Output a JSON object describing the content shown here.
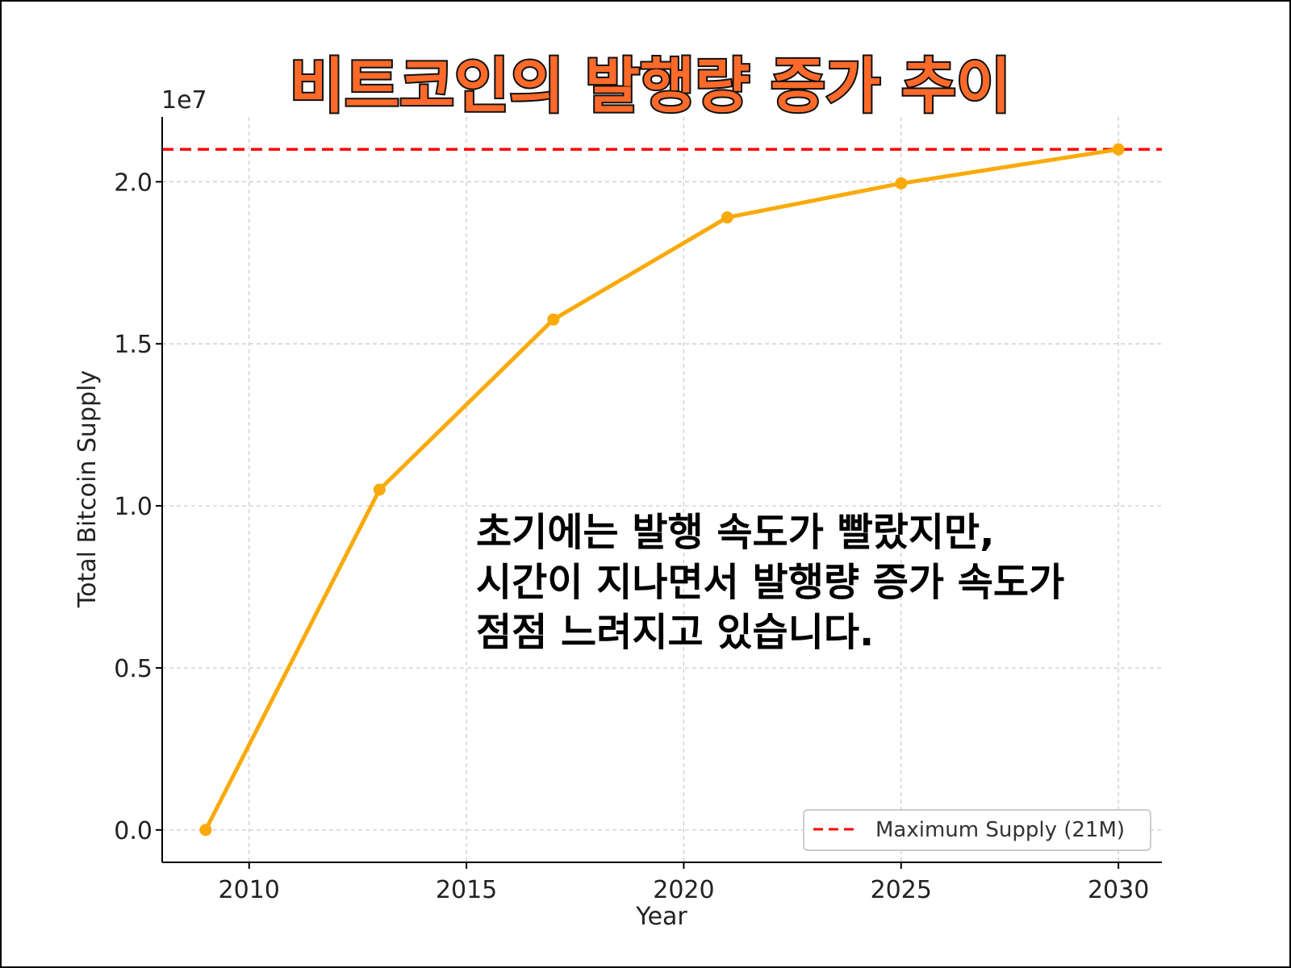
{
  "chart_data": {
    "type": "line",
    "title": "비트코인의 발행량 증가 추이",
    "xlabel": "Year",
    "ylabel": "Total Bitcoin Supply",
    "y_offset_label": "1e7",
    "x": [
      2009,
      2013,
      2017,
      2021,
      2025,
      2030
    ],
    "series": [
      {
        "values": [
          0,
          10500000,
          15750000,
          18900000,
          19950000,
          21000000
        ],
        "color": "#f9aa0a"
      }
    ],
    "reference_line": {
      "name": "Maximum Supply (21M)",
      "value": 21000000,
      "color": "#ff0000",
      "style": "dashed"
    },
    "xlim": [
      2008,
      2031
    ],
    "ylim": [
      -1000000,
      22000000
    ],
    "x_ticks": [
      2010,
      2015,
      2020,
      2025,
      2030
    ],
    "x_tick_labels": [
      "2010",
      "2015",
      "2020",
      "2025",
      "2030"
    ],
    "y_ticks": [
      0,
      5000000,
      10000000,
      15000000,
      20000000
    ],
    "y_tick_labels": [
      "0.0",
      "0.5",
      "1.0",
      "1.5",
      "2.0"
    ],
    "grid": true,
    "legend_position": "bottom-right",
    "annotation": [
      "초기에는 발행 속도가 빨랐지만,",
      "시간이 지나면서 발행량 증가 속도가",
      "점점 느려지고 있습니다."
    ]
  }
}
